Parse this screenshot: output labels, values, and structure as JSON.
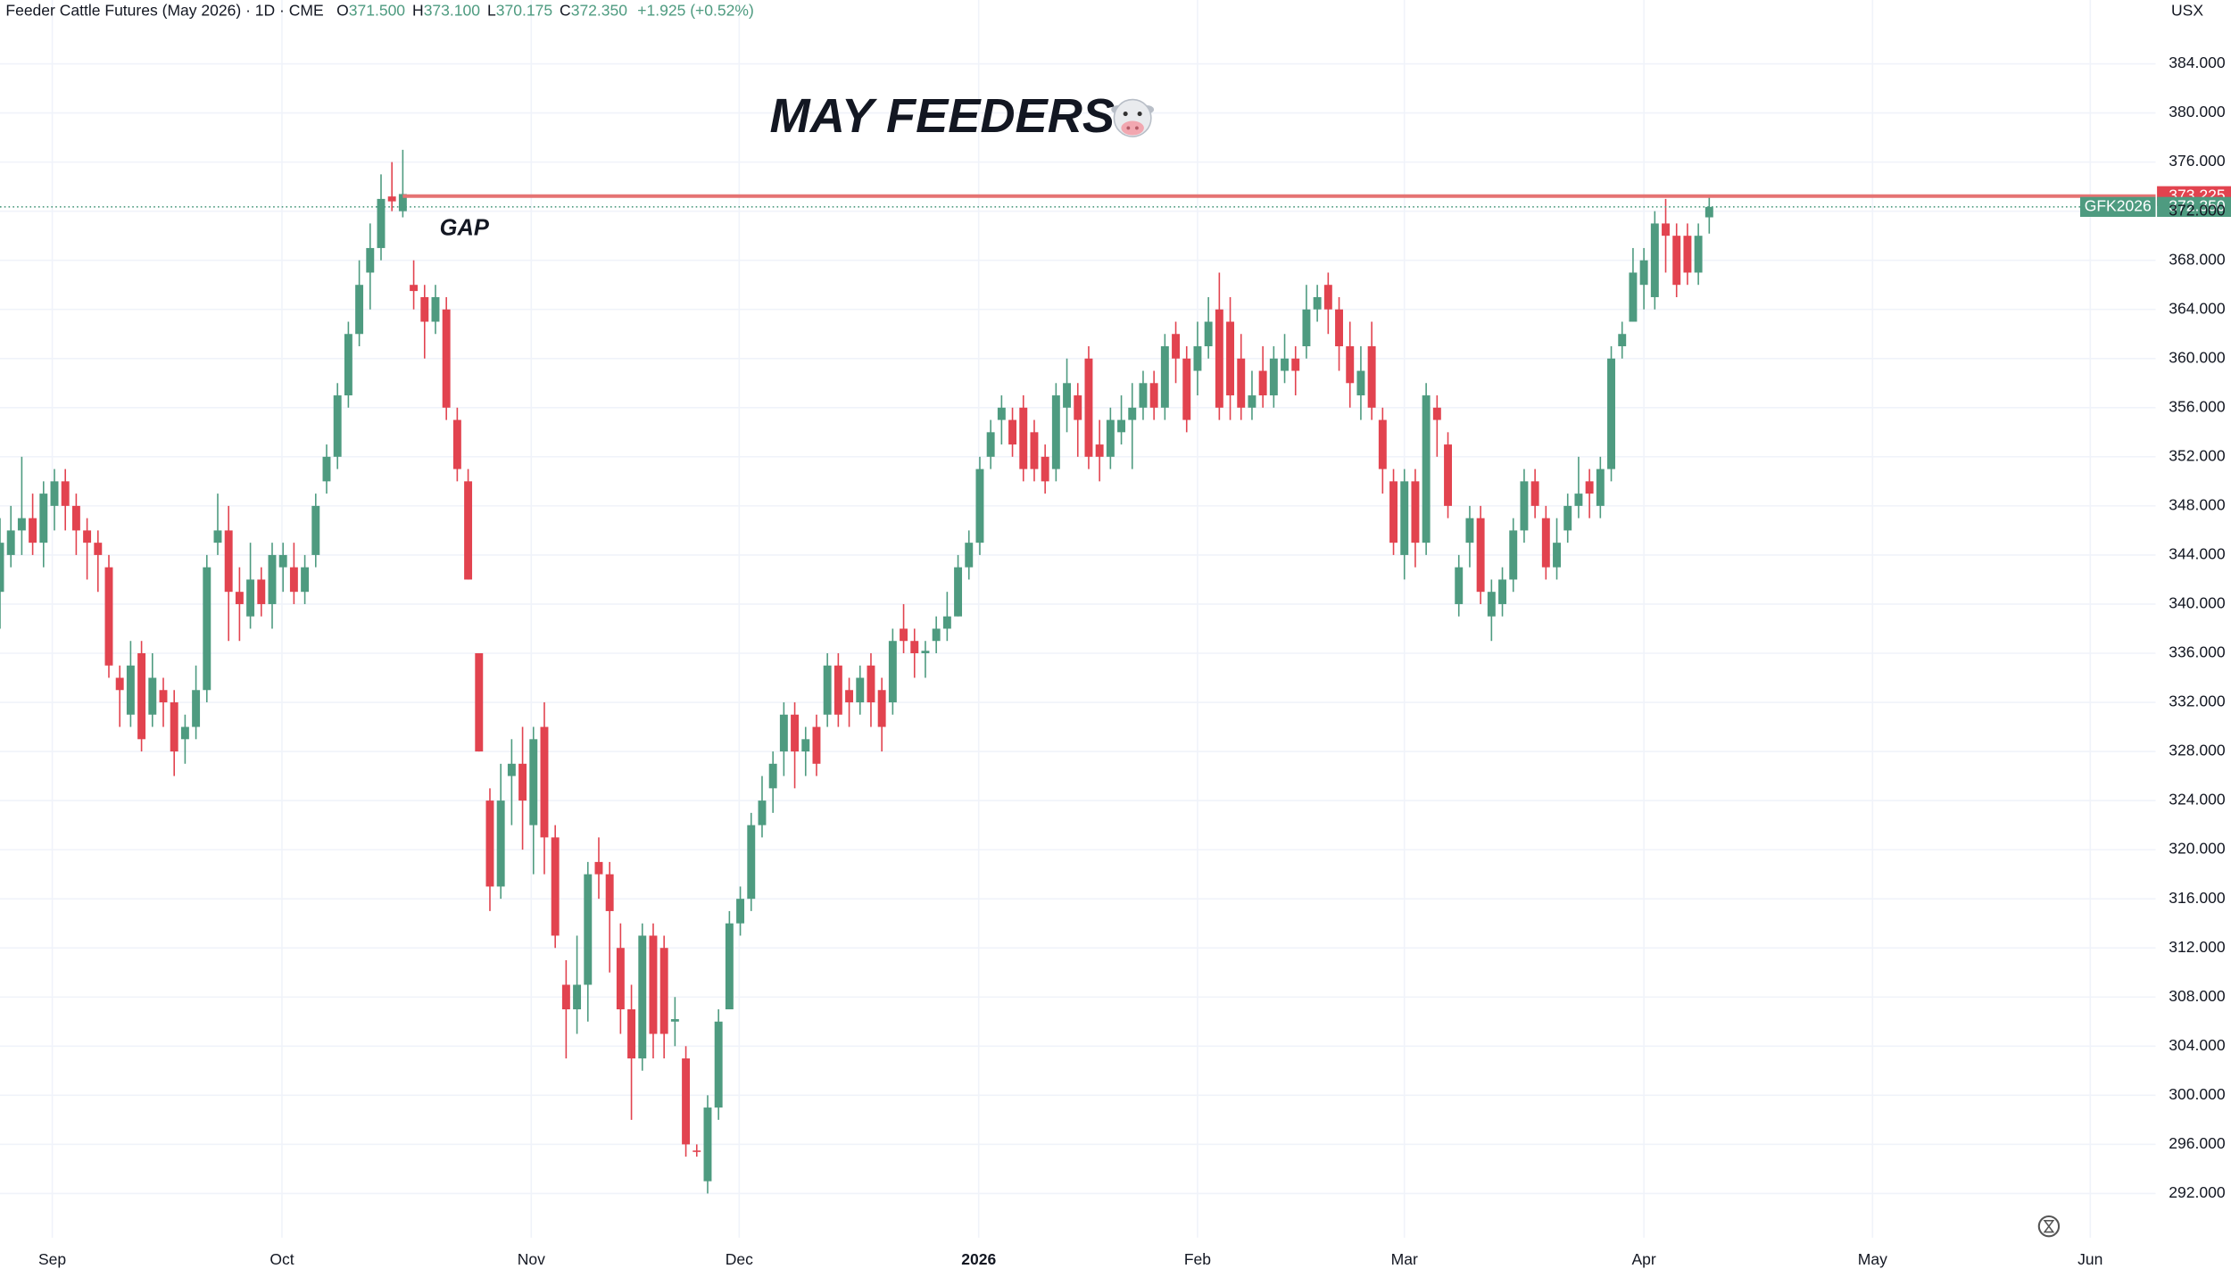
{
  "chart_data": {
    "type": "candlestick",
    "title": "MAY FEEDERS",
    "instrument": "Feeder Cattle Futures (May 2026) · 1D · CME",
    "ohlc_fields": [
      {
        "key": "O",
        "value": "371.500"
      },
      {
        "key": "H",
        "value": "373.100"
      },
      {
        "key": "L",
        "value": "370.175"
      },
      {
        "key": "C",
        "value": "372.350"
      }
    ],
    "change": "+1.925 (+0.52%)",
    "currency": "USX",
    "annotation": "GAP",
    "up_color": "#4e9b80",
    "down_color": "#e2434f",
    "open": [
      341,
      344,
      346,
      347,
      345,
      348,
      350,
      348,
      346,
      345,
      343,
      334,
      331,
      336,
      331,
      333,
      332,
      329,
      330,
      333,
      345,
      346,
      341,
      339,
      342,
      340,
      343,
      343,
      341,
      344,
      350,
      352,
      357,
      362,
      367,
      369,
      373.2,
      372,
      366,
      365,
      363,
      364,
      355,
      350,
      336,
      324,
      317,
      326,
      327,
      322,
      330,
      321,
      309,
      307,
      309,
      319,
      318,
      312,
      307,
      303,
      313,
      312,
      306,
      303,
      295.5,
      293,
      299,
      307,
      314,
      316,
      322,
      325,
      328,
      331,
      328,
      330,
      331,
      335,
      333,
      332,
      335,
      333,
      332,
      338,
      337,
      336,
      337,
      338,
      339,
      343,
      345,
      352,
      355,
      355,
      356,
      354,
      352,
      351,
      356,
      357,
      360,
      353,
      352,
      354,
      355,
      356,
      358,
      356,
      362,
      360,
      359,
      361,
      364,
      363,
      360,
      356,
      359,
      357,
      359,
      360,
      361,
      364,
      366,
      364,
      361,
      357,
      361,
      355,
      350,
      344,
      350,
      345,
      356,
      353,
      340,
      345,
      347,
      339,
      340,
      342,
      346,
      350,
      347,
      343,
      346,
      348,
      350,
      348,
      351,
      361,
      363,
      366,
      365,
      371,
      370,
      370,
      367,
      371.5
    ],
    "high": [
      347,
      348,
      352,
      349,
      350,
      351,
      351,
      349,
      347,
      346,
      344,
      335,
      337,
      337,
      336,
      334,
      333,
      331,
      335,
      344,
      349,
      348,
      343,
      345,
      343,
      345,
      345,
      345,
      344,
      349,
      353,
      358,
      363,
      368,
      371,
      375,
      376,
      377,
      368,
      366,
      366,
      365,
      356,
      351,
      336,
      325,
      327,
      329,
      330,
      330,
      332,
      322,
      311,
      313,
      319,
      321,
      319,
      314,
      309,
      314,
      314,
      313,
      308,
      304,
      296,
      300,
      307,
      315,
      317,
      323,
      326,
      328,
      332,
      332,
      330,
      331,
      336,
      336,
      334,
      335,
      336,
      334,
      338,
      340,
      338,
      337,
      339,
      341,
      344,
      346,
      352,
      355,
      357,
      356,
      357,
      355,
      353,
      358,
      360,
      358,
      361,
      355,
      356,
      357,
      358,
      359,
      359,
      362,
      363,
      361,
      363,
      365,
      367,
      365,
      362,
      359,
      361,
      361,
      362,
      361,
      366,
      366,
      367,
      365,
      363,
      361,
      363,
      356,
      351,
      351,
      351,
      358,
      357,
      354,
      344,
      348,
      348,
      342,
      343,
      347,
      351,
      351,
      348,
      347,
      349,
      352,
      351,
      352,
      361,
      363,
      369,
      369,
      372,
      373,
      371,
      371,
      371,
      373.1
    ],
    "low": [
      338,
      343,
      344,
      344,
      343,
      346,
      346,
      344,
      342,
      341,
      334,
      330,
      330,
      328,
      330,
      330,
      326,
      327,
      329,
      332,
      344,
      337,
      337,
      338,
      339,
      338,
      341,
      340,
      340,
      343,
      349,
      351,
      356,
      361,
      364,
      368,
      372,
      371.5,
      364,
      360,
      362,
      355,
      350,
      342,
      328,
      315,
      316,
      322,
      320,
      318,
      318,
      312,
      303,
      305,
      306,
      316,
      310,
      305,
      298,
      302,
      303,
      303,
      304,
      295,
      295,
      292,
      298,
      307,
      313,
      315,
      321,
      323,
      326,
      325,
      326,
      326,
      330,
      330,
      330,
      331,
      330,
      328,
      331,
      336,
      334,
      334,
      336,
      337,
      339,
      342,
      344,
      351,
      353,
      352,
      350,
      350,
      349,
      350,
      354,
      352,
      351,
      350,
      351,
      353,
      351,
      355,
      355,
      355,
      358,
      354,
      357,
      360,
      355,
      355,
      355,
      355,
      356,
      356,
      358,
      357,
      360,
      363,
      362,
      359,
      356,
      355,
      355,
      349,
      344,
      342,
      343,
      344,
      352,
      347,
      339,
      343,
      340,
      337,
      339,
      341,
      345,
      347,
      342,
      342,
      345,
      347,
      347,
      347,
      350,
      360,
      363,
      364,
      364,
      367,
      365,
      366,
      366,
      370.175
    ],
    "close": [
      345,
      346,
      347,
      345,
      349,
      350,
      348,
      346,
      345,
      344,
      335,
      333,
      335,
      329,
      334,
      332,
      328,
      330,
      333,
      343,
      346,
      341,
      340,
      342,
      340,
      344,
      344,
      341,
      343,
      348,
      352,
      357,
      362,
      366,
      369,
      373,
      372.8,
      373.4,
      365.5,
      363,
      365,
      356,
      351,
      342,
      328,
      317,
      324,
      327,
      324,
      329,
      321,
      313,
      307,
      309,
      318,
      318,
      315,
      307,
      303,
      313,
      305,
      305,
      306.2,
      296,
      295.4,
      299,
      306,
      314,
      316,
      322,
      324,
      327,
      331,
      328,
      329,
      327,
      335,
      331,
      332,
      334,
      332,
      330,
      337,
      337,
      336,
      336.2,
      338,
      339,
      343,
      345,
      351,
      354,
      356,
      353,
      351,
      351,
      350,
      357,
      358,
      355,
      352,
      352,
      355,
      355,
      356,
      358,
      356,
      361,
      360,
      355,
      361,
      363,
      356,
      357,
      356,
      357,
      357,
      360,
      360,
      359,
      364,
      365,
      364,
      361,
      358,
      359,
      356,
      351,
      345,
      350,
      345,
      357,
      355,
      348,
      343,
      347,
      341,
      341,
      342,
      346,
      350,
      348,
      343,
      345,
      348,
      349,
      349,
      351,
      360,
      362,
      367,
      368,
      371,
      370,
      366,
      367,
      370,
      372.35
    ],
    "xlim": [
      0,
      198
    ],
    "xticks": [
      {
        "value": 4.8,
        "label": "Sep"
      },
      {
        "value": 25.9,
        "label": "Oct"
      },
      {
        "value": 48.8,
        "label": "Nov"
      },
      {
        "value": 67.9,
        "label": "Dec"
      },
      {
        "value": 89.9,
        "label": "2026"
      },
      {
        "value": 110,
        "label": "Feb"
      },
      {
        "value": 129,
        "label": "Mar"
      },
      {
        "value": 151,
        "label": "Apr"
      },
      {
        "value": 172,
        "label": "May"
      },
      {
        "value": 192,
        "label": "Jun"
      }
    ],
    "ylim": [
      288.4,
      389.2
    ],
    "yticks": [
      {
        "value": 292,
        "label": "292.000"
      },
      {
        "value": 296,
        "label": "296.000"
      },
      {
        "value": 300,
        "label": "300.000"
      },
      {
        "value": 304,
        "label": "304.000"
      },
      {
        "value": 308,
        "label": "308.000"
      },
      {
        "value": 312,
        "label": "312.000"
      },
      {
        "value": 316,
        "label": "316.000"
      },
      {
        "value": 320,
        "label": "320.000"
      },
      {
        "value": 324,
        "label": "324.000"
      },
      {
        "value": 328,
        "label": "328.000"
      },
      {
        "value": 332,
        "label": "332.000"
      },
      {
        "value": 336,
        "label": "336.000"
      },
      {
        "value": 340,
        "label": "340.000"
      },
      {
        "value": 344,
        "label": "344.000"
      },
      {
        "value": 348,
        "label": "348.000"
      },
      {
        "value": 352,
        "label": "352.000"
      },
      {
        "value": 356,
        "label": "356.000"
      },
      {
        "value": 360,
        "label": "360.000"
      },
      {
        "value": 364,
        "label": "364.000"
      },
      {
        "value": 368,
        "label": "368.000"
      },
      {
        "value": 372,
        "label": "372.000"
      },
      {
        "value": 376,
        "label": "376.000"
      },
      {
        "value": 380,
        "label": "380.000"
      },
      {
        "value": 384,
        "label": "384.000"
      }
    ],
    "grid": true,
    "resistance_line": {
      "value": 373.225,
      "label": "373.225",
      "color": "#e57373"
    },
    "last_price": {
      "symbol": "GFK2026",
      "value": 372.35,
      "label": "372.350",
      "color": "#4e9b80"
    }
  }
}
